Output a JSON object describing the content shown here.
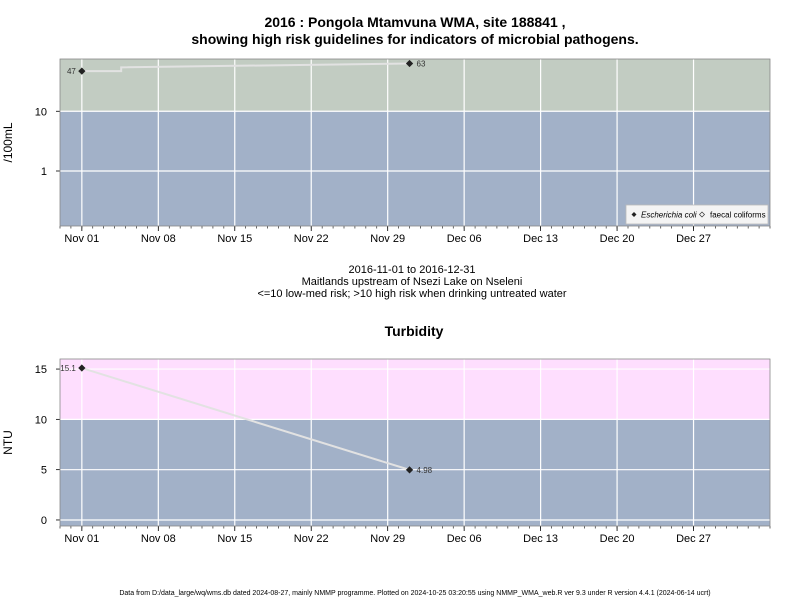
{
  "chart_data": [
    {
      "type": "line",
      "title_line1": "2016 : Pongola Mtamvuna WMA, site 188841 ,",
      "title_line2": "showing high risk guidelines for indicators of microbial pathogens.",
      "ylabel": "/100mL",
      "yscale": "log",
      "ylim": [
        0.12,
        75
      ],
      "yticks": [
        1,
        10
      ],
      "ytick_labels": [
        "1",
        "10"
      ],
      "x_range": [
        "2016-10-30",
        "2017-01-03"
      ],
      "xticks": [
        "2016-11-01",
        "2016-11-08",
        "2016-11-15",
        "2016-11-22",
        "2016-11-29",
        "2016-12-06",
        "2016-12-13",
        "2016-12-20",
        "2016-12-27"
      ],
      "xtick_labels": [
        "Nov 01",
        "Nov 08",
        "Nov 15",
        "Nov 22",
        "Nov 29",
        "Dec 06",
        "Dec 13",
        "Dec 20",
        "Dec 27"
      ],
      "bands": [
        {
          "from": 0.12,
          "to": 10,
          "color": "#a2b1c8"
        },
        {
          "from": 10,
          "to": 75,
          "color": "#c2ccc2"
        }
      ],
      "series": [
        {
          "name": "Escherichia coli",
          "marker": "filled-diamond",
          "x": [
            "2016-11-01",
            "2016-12-01"
          ],
          "y": [
            47,
            63
          ],
          "labels": [
            "47",
            "63"
          ]
        },
        {
          "name": "faecal coliforms",
          "marker": "open-diamond",
          "x": [],
          "y": [],
          "labels": []
        }
      ],
      "legend_position": "bottom-right",
      "grid": true,
      "caption_lines": [
        "2016-11-01 to 2016-12-31",
        "Maitlands upstream of Nsezi Lake on Nseleni",
        "<=10 low-med risk; >10 high risk when drinking untreated water"
      ]
    },
    {
      "type": "line",
      "title": "Turbidity",
      "ylabel": "NTU",
      "ylim": [
        -0.6,
        16
      ],
      "yticks": [
        0,
        5,
        10,
        15
      ],
      "ytick_labels": [
        "0",
        "5",
        "10",
        "15"
      ],
      "x_range": [
        "2016-10-30",
        "2017-01-03"
      ],
      "xticks": [
        "2016-11-01",
        "2016-11-08",
        "2016-11-15",
        "2016-11-22",
        "2016-11-29",
        "2016-12-06",
        "2016-12-13",
        "2016-12-20",
        "2016-12-27"
      ],
      "xtick_labels": [
        "Nov 01",
        "Nov 08",
        "Nov 15",
        "Nov 22",
        "Nov 29",
        "Dec 06",
        "Dec 13",
        "Dec 20",
        "Dec 27"
      ],
      "bands": [
        {
          "from": -0.6,
          "to": 10,
          "color": "#a2b1c8"
        },
        {
          "from": 10,
          "to": 16,
          "color": "#fedefe"
        }
      ],
      "series": [
        {
          "name": "Turbidity",
          "marker": "filled-diamond",
          "x": [
            "2016-11-01",
            "2016-12-01"
          ],
          "y": [
            15.1,
            4.98
          ],
          "labels": [
            "15.1",
            "4.98"
          ]
        }
      ],
      "grid": true
    }
  ],
  "footer": "Data from D:/data_large/wq/wms.db dated 2024-08-27, mainly NMMP programme. Plotted on 2024-10-25 03:20:55 using NMMP_WMA_web.R ver 9.3 under R version 4.4.1 (2024-06-14 ucrt)"
}
